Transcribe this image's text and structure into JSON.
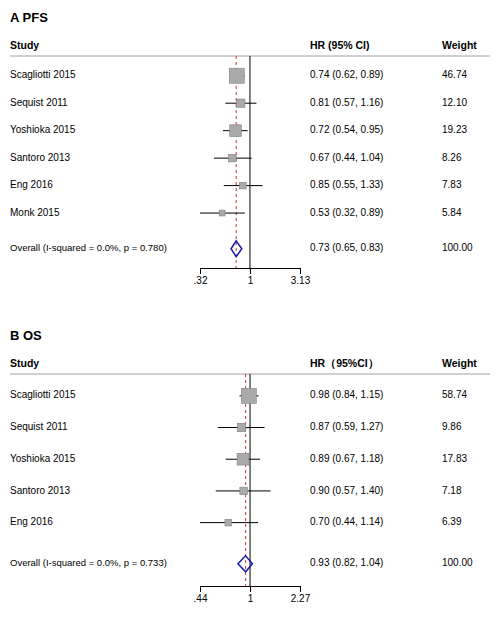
{
  "chart_data": [
    {
      "type": "forest",
      "title": "A  PFS",
      "columns": [
        "Study",
        "HR (95% CI)",
        "Weight"
      ],
      "categories": [
        "Scagliotti 2015",
        "Sequist 2011",
        "Yoshioka 2015",
        "Santoro 2013",
        "Eng 2016",
        "Monk 2015"
      ],
      "values": [
        0.74,
        0.81,
        0.72,
        0.67,
        0.85,
        0.53
      ],
      "lower": [
        0.62,
        0.57,
        0.54,
        0.44,
        0.55,
        0.32
      ],
      "upper": [
        0.89,
        1.16,
        0.95,
        1.04,
        1.33,
        0.89
      ],
      "value_labels": [
        "0.74 (0.62, 0.89)",
        "0.81 (0.57, 1.16)",
        "0.72 (0.54, 0.95)",
        "0.67 (0.44, 1.04)",
        "0.85 (0.55, 1.33)",
        "0.53 (0.32, 0.89)"
      ],
      "weight_labels": [
        "46.74",
        "12.10",
        "19.23",
        "8.26",
        "7.83",
        "5.84"
      ],
      "box_sizes": [
        9,
        5,
        7,
        4.5,
        4,
        3.5
      ],
      "color": "#aaaaaa",
      "overall": {
        "name": "Overall  (I-squared = 0.0%, p = 0.780)",
        "value": 0.73,
        "lower": 0.65,
        "upper": 0.83,
        "value_label": "0.73 (0.65, 0.83)",
        "weight_label": "100.00",
        "color": "#1a1aaa"
      },
      "reference": 1,
      "log": "x",
      "xlim": [
        0.32,
        3.13
      ],
      "xticks": [
        {
          "value": 0.32,
          "label": ".32"
        },
        1,
        3.13
      ]
    },
    {
      "type": "forest",
      "title": "B  OS",
      "columns": [
        "Study",
        "HR（95%CI）",
        "Weight"
      ],
      "categories": [
        "Scagliotti 2015",
        "Sequist 2011",
        "Yoshioka 2015",
        "Santoro 2013",
        "Eng 2016"
      ],
      "values": [
        0.98,
        0.87,
        0.89,
        0.9,
        0.7
      ],
      "lower": [
        0.84,
        0.59,
        0.67,
        0.57,
        0.44
      ],
      "upper": [
        1.15,
        1.27,
        1.18,
        1.4,
        1.14
      ],
      "value_labels": [
        "0.98 (0.84, 1.15)",
        "0.87 (0.59, 1.27)",
        "0.89 (0.67, 1.18)",
        "0.90 (0.57, 1.40)",
        "0.70 (0.44, 1.14)"
      ],
      "weight_labels": [
        "58.74",
        "9.86",
        "17.83",
        "7.18",
        "6.39"
      ],
      "box_sizes": [
        9,
        5,
        7,
        4.5,
        4
      ],
      "color": "#aaaaaa",
      "overall": {
        "name": "Overall  (I-squared = 0.0%, p = 0.733)",
        "value": 0.93,
        "lower": 0.82,
        "upper": 1.04,
        "value_label": "0.93 (0.82, 1.04)",
        "weight_label": "100.00",
        "color": "#1a1aaa"
      },
      "reference": 1,
      "log": "x",
      "xlim": [
        0.44,
        2.27
      ],
      "xticks": [
        {
          "value": 0.44,
          "label": ".44"
        },
        1,
        2.27
      ]
    }
  ]
}
